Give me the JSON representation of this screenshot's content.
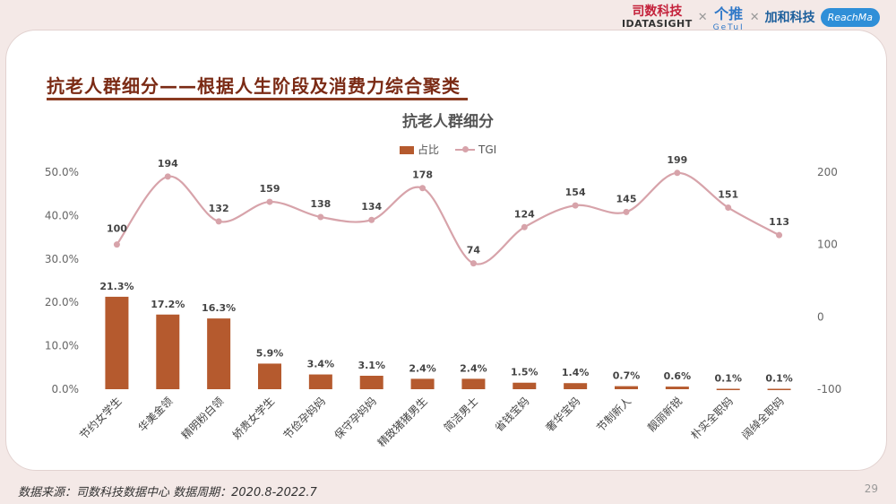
{
  "header": {
    "brand_cn": "司数科技",
    "brand_en": "IDATASIGHT",
    "brand2": "个推",
    "brand2_sub": "GeTuI",
    "brand3": "加和科技",
    "brand4": "ReachMa"
  },
  "slide": {
    "title": "抗老人群细分——根据人生阶段及消费力综合聚类",
    "page_number": "29"
  },
  "footer": {
    "source": "数据来源：司数科技数据中心    数据周期：2020.8-2022.7"
  },
  "colors": {
    "bar": "#b55a2e",
    "line": "#d7a3aa",
    "title": "#7a2a14"
  },
  "chart_data": {
    "type": "bar",
    "title": "抗老人群细分",
    "categories": [
      "节约女学生",
      "华美金领",
      "精明粉白领",
      "娇贵女学生",
      "节俭孕妈妈",
      "保守孕妈妈",
      "精致猪猪男生",
      "简洁男士",
      "省钱宝妈",
      "奢华宝妈",
      "节制新人",
      "靓丽新锐",
      "朴实全职妈",
      "阔绰全职妈"
    ],
    "series": [
      {
        "name": "占比",
        "type": "bar",
        "axis": "left",
        "values": [
          21.3,
          17.2,
          16.3,
          5.9,
          3.4,
          3.1,
          2.4,
          2.4,
          1.5,
          1.4,
          0.7,
          0.6,
          0.1,
          0.1
        ],
        "labels": [
          "21.3%",
          "17.2%",
          "16.3%",
          "5.9%",
          "3.4%",
          "3.1%",
          "2.4%",
          "2.4%",
          "1.5%",
          "1.4%",
          "0.7%",
          "0.6%",
          "0.1%",
          "0.1%"
        ]
      },
      {
        "name": "TGI",
        "type": "line",
        "axis": "right",
        "values": [
          100,
          194,
          132,
          159,
          138,
          134,
          178,
          74,
          124,
          154,
          145,
          199,
          151,
          113
        ],
        "labels": [
          "100",
          "194",
          "132",
          "159",
          "138",
          "134",
          "178",
          "74",
          "124",
          "154",
          "145",
          "199",
          "151",
          "113"
        ]
      }
    ],
    "y_left": {
      "ticks": [
        "0.0%",
        "10.0%",
        "20.0%",
        "30.0%",
        "40.0%",
        "50.0%"
      ],
      "range": [
        0,
        50
      ]
    },
    "y_right": {
      "ticks": [
        "-100",
        "0",
        "100",
        "200"
      ],
      "range": [
        -100,
        200
      ]
    },
    "legend": [
      "占比",
      "TGI"
    ],
    "legend_position": "top-center",
    "grid": false
  }
}
